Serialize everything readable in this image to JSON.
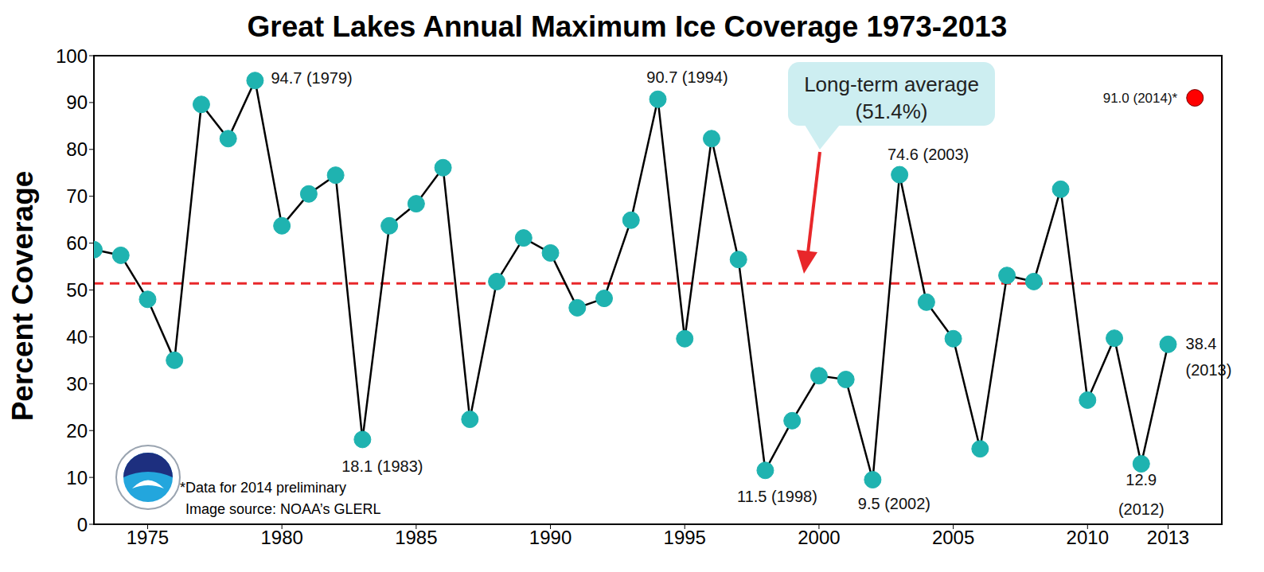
{
  "chart_data": {
    "type": "line",
    "title": "Great Lakes Annual Maximum Ice Coverage 1973-2013",
    "y_label": "Percent Coverage",
    "x": [
      1973,
      1974,
      1975,
      1976,
      1977,
      1978,
      1979,
      1980,
      1981,
      1982,
      1983,
      1984,
      1985,
      1986,
      1987,
      1988,
      1989,
      1990,
      1991,
      1992,
      1993,
      1994,
      1995,
      1996,
      1997,
      1998,
      1999,
      2000,
      2001,
      2002,
      2003,
      2004,
      2005,
      2006,
      2007,
      2008,
      2009,
      2010,
      2011,
      2012,
      2013,
      2014
    ],
    "series": [
      {
        "color": "#1fb3b0",
        "marker": "circle",
        "line_style": "solid",
        "values": [
          58.6,
          57.4,
          48.0,
          35.0,
          89.6,
          82.3,
          94.7,
          63.7,
          70.5,
          74.5,
          18.1,
          63.7,
          68.4,
          76.1,
          22.4,
          51.8,
          61.1,
          57.9,
          46.2,
          48.2,
          64.9,
          90.7,
          39.6,
          82.3,
          56.5,
          11.5,
          22.1,
          31.7,
          30.9,
          9.5,
          74.6,
          47.4,
          39.6,
          16.1,
          53.1,
          51.8,
          71.5,
          26.5,
          39.7,
          12.9,
          38.4,
          null
        ]
      },
      {
        "type": "scatter",
        "color": "#ff0000",
        "marker": "circle",
        "values": [
          null,
          null,
          null,
          null,
          null,
          null,
          null,
          null,
          null,
          null,
          null,
          null,
          null,
          null,
          null,
          null,
          null,
          null,
          null,
          null,
          null,
          null,
          null,
          null,
          null,
          null,
          null,
          null,
          null,
          null,
          null,
          null,
          null,
          null,
          null,
          null,
          null,
          null,
          null,
          null,
          null,
          91.0
        ]
      }
    ],
    "xlim": [
      1973,
      2015
    ],
    "xticks": [
      1975,
      1980,
      1985,
      1990,
      1995,
      2000,
      2005,
      2010,
      2013
    ],
    "ylim": [
      0,
      100
    ],
    "yticks": [
      0,
      10,
      20,
      30,
      40,
      50,
      60,
      70,
      80,
      90,
      100
    ],
    "grid": false,
    "reference_line": {
      "y": 51.4,
      "color": "#e8272a",
      "line_style": "dashed",
      "label": "Long-term average",
      "value_label": "(51.4%)"
    },
    "annotations": [
      {
        "x": 1979,
        "y": 94.7,
        "text": [
          "94.7 (1979)"
        ]
      },
      {
        "x": 1983,
        "y": 18.1,
        "text": [
          "18.1 (1983)"
        ]
      },
      {
        "x": 1994,
        "y": 90.7,
        "text": [
          "90.7 (1994)"
        ]
      },
      {
        "x": 1998,
        "y": 11.5,
        "text": [
          "11.5 (1998)"
        ]
      },
      {
        "x": 2002,
        "y": 9.5,
        "text": [
          "9.5 (2002)"
        ]
      },
      {
        "x": 2003,
        "y": 74.6,
        "text": [
          "74.6 (2003)"
        ]
      },
      {
        "x": 2012,
        "y": 12.9,
        "text": [
          "12.9",
          "(2012)"
        ]
      },
      {
        "x": 2013,
        "y": 38.4,
        "text": [
          "38.4",
          "(2013)"
        ]
      },
      {
        "x": 2014,
        "y": 91.0,
        "text": [
          "91.0 (2014)*"
        ]
      }
    ],
    "notes": [
      "*Data for 2014 preliminary",
      "Image source: NOAA’s GLERL"
    ]
  }
}
